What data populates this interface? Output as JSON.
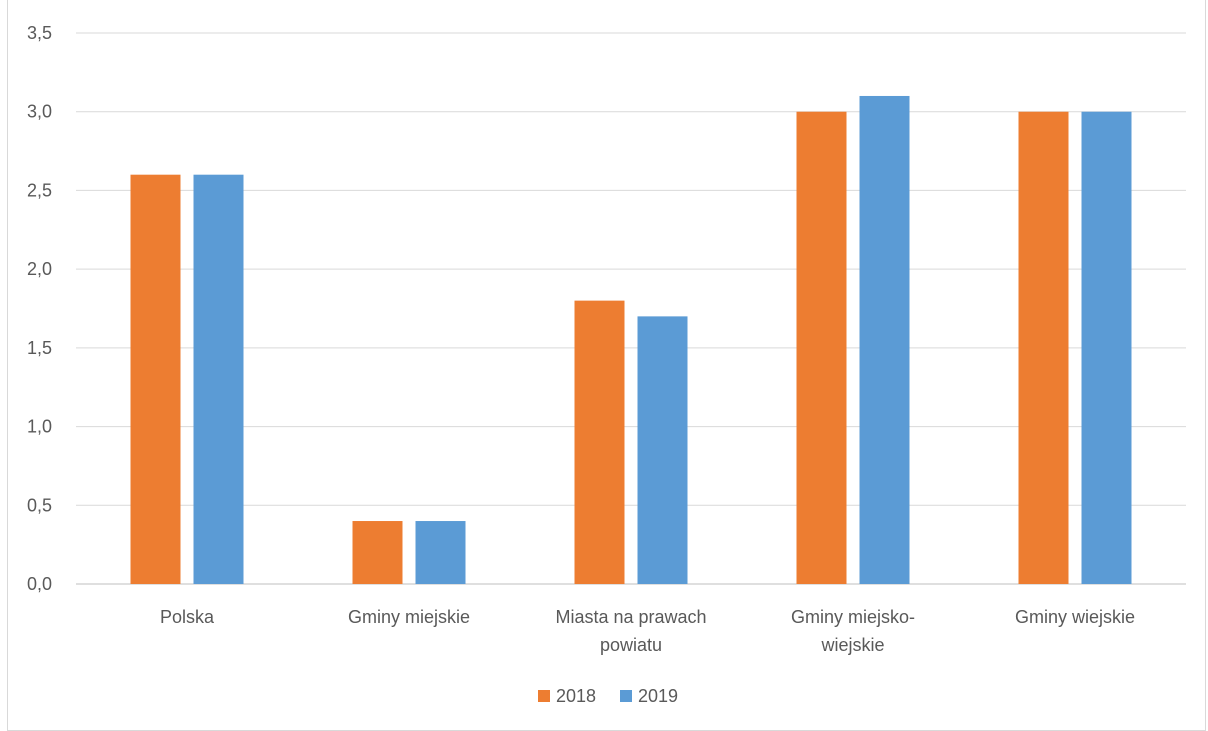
{
  "chart_data": {
    "type": "bar",
    "title": "",
    "xlabel": "",
    "ylabel": "",
    "categories": [
      [
        "Polska"
      ],
      [
        "Gminy miejskie"
      ],
      [
        "Miasta na prawach",
        "powiatu"
      ],
      [
        "Gminy miejsko-",
        "wiejskie"
      ],
      [
        "Gminy wiejskie"
      ]
    ],
    "series": [
      {
        "name": "2018",
        "color": "#ed7d31",
        "values": [
          2.6,
          0.4,
          1.8,
          3.0,
          3.0
        ]
      },
      {
        "name": "2019",
        "color": "#5b9bd5",
        "values": [
          2.6,
          0.4,
          1.7,
          3.1,
          3.0
        ]
      }
    ],
    "ylim": [
      0,
      3.5
    ],
    "yticks": [
      "0,0",
      "0,5",
      "1,0",
      "1,5",
      "2,0",
      "2,5",
      "3,0",
      "3,5"
    ],
    "ytick_values": [
      0,
      0.5,
      1.0,
      1.5,
      2.0,
      2.5,
      3.0,
      3.5
    ],
    "grid": true,
    "legend_position": "bottom"
  }
}
